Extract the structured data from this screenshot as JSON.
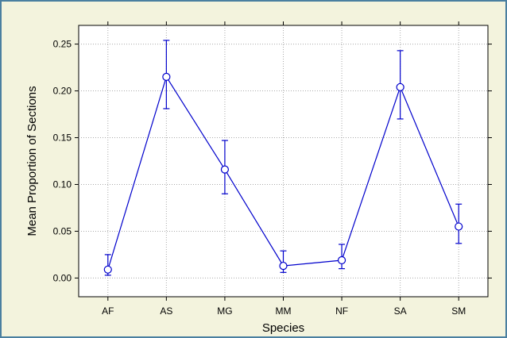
{
  "chart_data": {
    "type": "line",
    "xlabel": "Species",
    "ylabel": "Mean Proportion of Sections",
    "categories": [
      "AF",
      "AS",
      "MG",
      "MM",
      "NF",
      "SA",
      "SM"
    ],
    "series": [
      {
        "values": [
          0.009,
          0.215,
          0.116,
          0.013,
          0.019,
          0.204,
          0.055
        ],
        "error_low": [
          0.003,
          0.181,
          0.09,
          0.006,
          0.01,
          0.17,
          0.037
        ],
        "error_high": [
          0.025,
          0.254,
          0.147,
          0.029,
          0.036,
          0.243,
          0.079
        ]
      }
    ],
    "ylim": [
      -0.02,
      0.27
    ],
    "yticks": [
      0.0,
      0.05,
      0.1,
      0.15,
      0.2,
      0.25
    ],
    "ytick_labels": [
      "0.00",
      "0.05",
      "0.10",
      "0.15",
      "0.20",
      "0.25"
    ],
    "grid": true,
    "colors": {
      "line": "#0000cc",
      "background": "#f3f3dd",
      "plot_area": "#ffffff",
      "border": "#4a7fa0"
    }
  }
}
